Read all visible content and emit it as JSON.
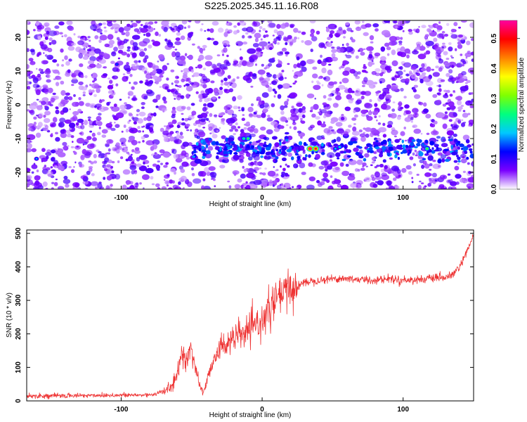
{
  "title": "S225.2025.345.11.16.R08",
  "chart_data": [
    {
      "type": "heatmap",
      "xlabel": "Height of straight line (km)",
      "ylabel": "Frequency (Hz)",
      "xlim": [
        -167,
        150
      ],
      "ylim": [
        -25,
        25
      ],
      "xticks": [
        -100,
        0,
        100
      ],
      "yticks": [
        -20,
        -10,
        0,
        10,
        20
      ],
      "colorbar": {
        "label": "Normalized spectral amplitude",
        "range": [
          0,
          0.56
        ],
        "ticks": [
          0,
          0.1,
          0.2,
          0.3,
          0.4,
          0.5
        ],
        "colors": [
          "#ffffff",
          "#7a00ff",
          "#0000ff",
          "#00c8ff",
          "#00ff80",
          "#80ff00",
          "#ffff00",
          "#ff8000",
          "#ff0000",
          "#ff00a0"
        ]
      },
      "features": [
        {
          "kind": "band",
          "freq_center": -13,
          "from_height": -50,
          "to_height": 150,
          "amplitude": 0.15
        },
        {
          "kind": "peak",
          "height": 34,
          "freq": -13,
          "amplitude": 0.56
        },
        {
          "kind": "peak",
          "height": 38,
          "freq": -13,
          "amplitude": 0.52
        },
        {
          "kind": "peak",
          "height": 117,
          "freq": -13,
          "amplitude": 0.3
        },
        {
          "kind": "peak",
          "height": -10,
          "freq": -10,
          "amplitude": 0.28
        },
        {
          "kind": "peak",
          "height": -13,
          "freq": -10,
          "amplitude": 0.25
        },
        {
          "kind": "peak",
          "height": 55,
          "freq": -12.5,
          "amplitude": 0.22
        },
        {
          "kind": "peak",
          "height": 52,
          "freq": -13,
          "amplitude": 0.2
        },
        {
          "kind": "peak",
          "height": -160,
          "freq": -16,
          "amplitude": 0.18
        },
        {
          "kind": "peak",
          "height": -103,
          "freq": 12,
          "amplitude": 0.15
        },
        {
          "kind": "gap",
          "height": 32
        }
      ]
    },
    {
      "type": "line",
      "xlabel": "Height of straight line (km)",
      "ylabel": "SNR (10 * v/v)",
      "xlim": [
        -167,
        150
      ],
      "ylim": [
        0,
        510
      ],
      "xticks": [
        -100,
        0,
        100
      ],
      "yticks": [
        0,
        100,
        200,
        300,
        400,
        500
      ],
      "color": "#ee3333",
      "series": [
        {
          "name": "SNR",
          "x": [
            -167,
            -150,
            -130,
            -110,
            -90,
            -80,
            -75,
            -70,
            -65,
            -60,
            -57,
            -54,
            -51,
            -48,
            -45,
            -42,
            -40,
            -37,
            -34,
            -30,
            -25,
            -20,
            -15,
            -10,
            -5,
            0,
            5,
            10,
            15,
            20,
            25,
            30,
            40,
            50,
            60,
            70,
            80,
            90,
            100,
            110,
            120,
            130,
            135,
            140,
            145,
            150
          ],
          "y": [
            15,
            15,
            16,
            17,
            17,
            18,
            22,
            28,
            40,
            75,
            150,
            115,
            155,
            120,
            55,
            25,
            45,
            90,
            135,
            155,
            175,
            185,
            200,
            205,
            225,
            240,
            270,
            300,
            320,
            335,
            340,
            355,
            360,
            365,
            365,
            362,
            360,
            365,
            360,
            362,
            365,
            368,
            375,
            400,
            440,
            495
          ]
        }
      ]
    }
  ]
}
